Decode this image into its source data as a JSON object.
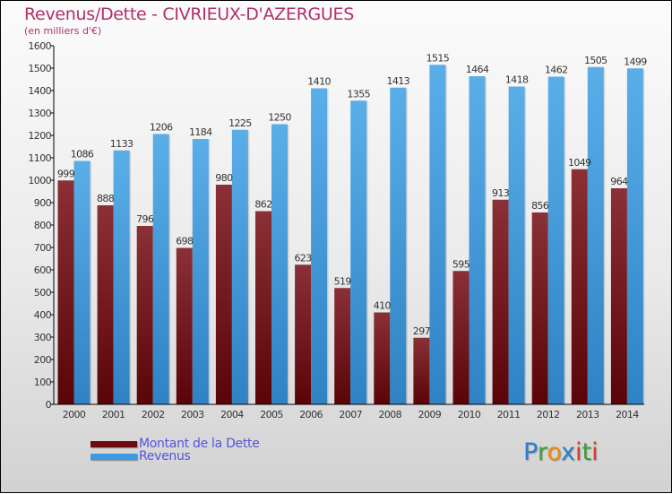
{
  "header": {
    "title": "Revenus/Dette - CIVRIEUX-D'AZERGUES",
    "subtitle": "(en milliers d'€)"
  },
  "chart_data": {
    "type": "bar",
    "title": "Revenus/Dette - CIVRIEUX-D'AZERGUES",
    "ylabel": "(en milliers d'€)",
    "xlabel": "",
    "ylim": [
      0,
      1600
    ],
    "yticks": [
      0,
      100,
      200,
      300,
      400,
      500,
      600,
      700,
      800,
      900,
      1000,
      1100,
      1200,
      1300,
      1400,
      1500,
      1600
    ],
    "categories": [
      "2000",
      "2001",
      "2002",
      "2003",
      "2004",
      "2005",
      "2006",
      "2007",
      "2008",
      "2009",
      "2010",
      "2011",
      "2012",
      "2013",
      "2014"
    ],
    "series": [
      {
        "name": "Montant de la Dette",
        "color": "#7a1a1e",
        "values": [
          999,
          888,
          796,
          698,
          980,
          862,
          623,
          519,
          410,
          297,
          595,
          913,
          856,
          1049,
          964
        ]
      },
      {
        "name": "Revenus",
        "color": "#4a9fdf",
        "values": [
          1086,
          1133,
          1206,
          1184,
          1225,
          1250,
          1410,
          1355,
          1413,
          1515,
          1464,
          1418,
          1462,
          1505,
          1499
        ]
      }
    ],
    "legend": "bottom-left",
    "grid": false
  },
  "legend": {
    "items": [
      {
        "label": "Montant de la Dette",
        "color": "#6b0a0e"
      },
      {
        "label": "Revenus",
        "color": "#3d9ae0"
      }
    ]
  },
  "logo": {
    "letters": [
      {
        "ch": "P",
        "color": "#2a7fd0"
      },
      {
        "ch": "r",
        "color": "#3aa03a"
      },
      {
        "ch": "o",
        "color": "#f08a10"
      },
      {
        "ch": "x",
        "color": "#2a7fd0"
      },
      {
        "ch": "i",
        "color": "#e03a2a"
      },
      {
        "ch": "t",
        "color": "#3aa03a"
      },
      {
        "ch": "i",
        "color": "#e03a2a"
      }
    ]
  }
}
